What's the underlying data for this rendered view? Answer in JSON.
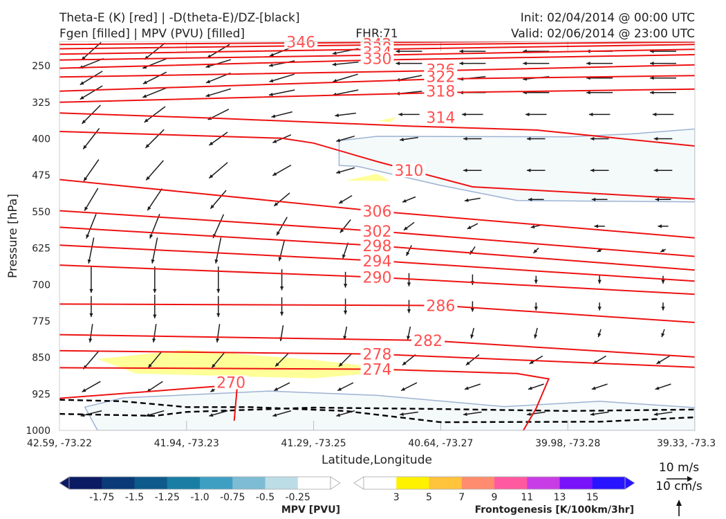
{
  "header": {
    "title_line1": "Theta-E (K) [red] | -D(theta-E)/DZ-[black]",
    "title_line2": "Fgen [filled] | MPV (PVU) [filled]",
    "fhr": "FHR:71",
    "init": "Init: 02/04/2014 @ 00:00 UTC",
    "valid": "Valid: 02/06/2014 @ 23:00 UTC"
  },
  "colors": {
    "theta_e": "#ee1111",
    "contour_label": "#ff5050",
    "neg_mpv_fill": "#f4f9fa",
    "neg_mpv_edge": "#9db2d3",
    "fgen_fill": "#ffff99",
    "dashed": "#000000"
  },
  "mpv_colorbar": {
    "title": "MPV [PVU]",
    "colors": [
      "#0b1b63",
      "#0b3a78",
      "#0e5a8c",
      "#1a7ea4",
      "#3f9fc2",
      "#7dbcd4",
      "#bcdde6",
      "#ffffff"
    ],
    "ticks": [
      "-1.75",
      "-1.5",
      "-1.25",
      "-1.0",
      "-0.75",
      "-0.5",
      "-0.25"
    ]
  },
  "fgen_colorbar": {
    "title": "Frontogenesis [K/100km/3hr]",
    "colors": [
      "#ffffff",
      "#fff200",
      "#ffc33c",
      "#ff8c6e",
      "#ff5aa0",
      "#c83ce6",
      "#7814fa",
      "#2814ff"
    ],
    "ticks": [
      "3",
      "5",
      "7",
      "9",
      "11",
      "13",
      "15"
    ]
  },
  "vector_key": {
    "label1": "10 m/s",
    "label2": "10 cm/s"
  },
  "chart_data": {
    "type": "cross-section",
    "xlabel": "Latitude,Longitude",
    "ylabel": "Pressure [hPa]",
    "x_ticks": [
      "42.59, -73.22",
      "41.94, -73.23",
      "41.29, -73.25",
      "40.64, -73.27",
      "39.98, -73.28",
      "39.33, -73.3"
    ],
    "x_range": [
      0,
      100
    ],
    "y_ticks": [
      250,
      325,
      400,
      475,
      550,
      625,
      700,
      775,
      850,
      925,
      1000
    ],
    "y_range": [
      1000,
      200
    ],
    "theta_e_contours": [
      {
        "level": 346,
        "label": "346",
        "label_at": [
          38,
          200.5
        ],
        "pts": [
          [
            0,
            206
          ],
          [
            50,
            202
          ],
          [
            100,
            197
          ]
        ]
      },
      {
        "level": 342,
        "label": "342",
        "label_at": [
          50,
          205
        ],
        "pts": [
          [
            0,
            215
          ],
          [
            50,
            207
          ],
          [
            100,
            201
          ]
        ]
      },
      {
        "level": 338,
        "label": "338",
        "label_at": [
          50,
          213
        ],
        "pts": [
          [
            0,
            226
          ],
          [
            50,
            216
          ],
          [
            100,
            206
          ]
        ]
      },
      {
        "level": 334,
        "label": "334",
        "label_at": [
          50,
          222
        ],
        "pts": [
          [
            0,
            238
          ],
          [
            50,
            228
          ],
          [
            100,
            216
          ]
        ]
      },
      {
        "level": 330,
        "label": "330",
        "label_at": [
          50,
          235
        ],
        "pts": [
          [
            0,
            255
          ],
          [
            50,
            238
          ],
          [
            100,
            227
          ]
        ]
      },
      {
        "level": 326,
        "label": "326",
        "label_at": [
          60,
          258
        ],
        "pts": [
          [
            0,
            273
          ],
          [
            60,
            260
          ],
          [
            100,
            248
          ]
        ]
      },
      {
        "level": 322,
        "label": "322",
        "label_at": [
          60,
          272
        ],
        "pts": [
          [
            0,
            302
          ],
          [
            60,
            277
          ],
          [
            100,
            270
          ]
        ]
      },
      {
        "level": 318,
        "label": "318",
        "label_at": [
          60,
          302
        ],
        "pts": [
          [
            0,
            325
          ],
          [
            60,
            305
          ],
          [
            100,
            298
          ]
        ]
      },
      {
        "level": 314,
        "label": "314",
        "label_at": [
          60,
          356
        ],
        "pts": [
          [
            0,
            347
          ],
          [
            25,
            358
          ],
          [
            55,
            374
          ],
          [
            75,
            382
          ],
          [
            100,
            415
          ]
        ]
      },
      {
        "level": 310,
        "label": "310",
        "label_at": [
          55,
          465
        ],
        "pts": [
          [
            0,
            385
          ],
          [
            35,
            399
          ],
          [
            40,
            409
          ],
          [
            50,
            447
          ],
          [
            65,
            499
          ],
          [
            100,
            524
          ]
        ]
      },
      {
        "level": 306,
        "label": "306",
        "label_at": [
          50,
          549
        ],
        "pts": [
          [
            0,
            484
          ],
          [
            50,
            549
          ],
          [
            100,
            604
          ]
        ]
      },
      {
        "level": 302,
        "label": "302",
        "label_at": [
          50,
          590
        ],
        "pts": [
          [
            0,
            548
          ],
          [
            50,
            590
          ],
          [
            100,
            642
          ]
        ]
      },
      {
        "level": 298,
        "label": "298",
        "label_at": [
          50,
          620
        ],
        "pts": [
          [
            0,
            582
          ],
          [
            50,
            620
          ],
          [
            100,
            670
          ]
        ]
      },
      {
        "level": 294,
        "label": "294",
        "label_at": [
          50,
          651
        ],
        "pts": [
          [
            0,
            619
          ],
          [
            50,
            651
          ],
          [
            100,
            693
          ]
        ]
      },
      {
        "level": 290,
        "label": "290",
        "label_at": [
          50,
          685
        ],
        "pts": [
          [
            0,
            660
          ],
          [
            50,
            685
          ],
          [
            100,
            720
          ]
        ]
      },
      {
        "level": 286,
        "label": "286",
        "label_at": [
          60,
          743
        ],
        "pts": [
          [
            0,
            740
          ],
          [
            60,
            743
          ],
          [
            100,
            778
          ]
        ]
      },
      {
        "level": 282,
        "label": "282",
        "label_at": [
          58,
          815
        ],
        "pts": [
          [
            0,
            803
          ],
          [
            58,
            815
          ],
          [
            100,
            849
          ]
        ]
      },
      {
        "level": 278,
        "label": "278",
        "label_at": [
          50,
          843
        ],
        "pts": [
          [
            0,
            836
          ],
          [
            50,
            843
          ],
          [
            100,
            870
          ]
        ]
      },
      {
        "level": 274,
        "label": "274",
        "label_at": [
          50,
          874
        ],
        "pts": [
          [
            0,
            871
          ],
          [
            50,
            874
          ],
          [
            72,
            883
          ],
          [
            77,
            894
          ],
          [
            75,
            955
          ],
          [
            73,
            1000
          ]
        ]
      },
      {
        "level": 270,
        "label": "270",
        "label_at": [
          27,
          901
        ],
        "pts": [
          [
            0,
            934
          ],
          [
            28,
            906
          ],
          [
            27.5,
            980
          ]
        ]
      }
    ],
    "neg_mpv_regions": [
      {
        "pts": [
          [
            44,
            404
          ],
          [
            50,
            395
          ],
          [
            80,
            396
          ],
          [
            90,
            390
          ],
          [
            100,
            380
          ],
          [
            100,
            530
          ],
          [
            72,
            527
          ],
          [
            60,
            496
          ],
          [
            47,
            457
          ],
          [
            44,
            455
          ]
        ]
      },
      {
        "pts": [
          [
            4,
            952
          ],
          [
            10,
            933
          ],
          [
            33,
            919
          ],
          [
            50,
            928
          ],
          [
            70,
            951
          ],
          [
            85,
            940
          ],
          [
            100,
            953
          ],
          [
            100,
            1000
          ],
          [
            6,
            1000
          ]
        ]
      }
    ],
    "fgen_regions": [
      {
        "pts": [
          [
            6,
            853
          ],
          [
            20,
            834
          ],
          [
            40,
            855
          ],
          [
            55,
            877
          ],
          [
            59,
            871
          ],
          [
            40,
            893
          ],
          [
            12,
            883
          ]
        ]
      },
      {
        "pts": [
          [
            45,
            486
          ],
          [
            50,
            472
          ],
          [
            52,
            487
          ]
        ]
      },
      {
        "pts": [
          [
            50,
            363
          ],
          [
            53,
            356
          ],
          [
            52,
            366
          ]
        ]
      }
    ],
    "dashed_contours": [
      {
        "pts": [
          [
            0,
            966
          ],
          [
            15,
            970
          ],
          [
            20,
            962
          ],
          [
            40,
            953
          ],
          [
            60,
            956
          ],
          [
            80,
            960
          ],
          [
            100,
            957
          ]
        ]
      },
      {
        "pts": [
          [
            0,
            937
          ],
          [
            10,
            940
          ],
          [
            20,
            952
          ],
          [
            30,
            952
          ],
          [
            45,
            960
          ],
          [
            60,
            983
          ],
          [
            85,
            982
          ],
          [
            100,
            973
          ]
        ]
      }
    ],
    "wind_rows": [
      {
        "p": 220,
        "u": [
          1,
          1,
          1,
          1,
          1,
          1,
          1,
          1,
          1,
          1
        ],
        "v": [
          -0.9,
          -0.8,
          -0.6,
          -0.4,
          -0.2,
          0,
          0,
          0,
          0,
          0
        ]
      },
      {
        "p": 245,
        "u": [
          1,
          1,
          1,
          1,
          1,
          1,
          1,
          1,
          1,
          1
        ],
        "v": [
          -0.4,
          -0.4,
          -0.3,
          -0.2,
          -0.1,
          0,
          0,
          0,
          0,
          0
        ]
      },
      {
        "p": 275,
        "u": [
          1,
          1,
          1,
          1,
          1,
          1,
          1,
          1,
          1,
          1
        ],
        "v": [
          -0.6,
          -0.5,
          -0.4,
          -0.3,
          -0.3,
          -0.2,
          -0.1,
          -0.1,
          0,
          0
        ]
      },
      {
        "p": 305,
        "u": [
          1,
          1,
          1,
          1,
          1,
          1,
          1,
          1,
          1,
          1
        ],
        "v": [
          -0.6,
          -0.4,
          -0.3,
          -0.2,
          -0.2,
          -0.1,
          0,
          0,
          0,
          0
        ]
      },
      {
        "p": 350,
        "u": [
          0.8,
          0.8,
          0.8,
          0.8,
          0.8,
          0.8,
          0.8,
          0.8,
          0.8,
          0.8
        ],
        "v": [
          -0.8,
          -0.6,
          -0.4,
          -0.2,
          -0.1,
          0,
          0,
          0,
          0,
          0
        ]
      },
      {
        "p": 400,
        "u": [
          0.7,
          0.7,
          0.7,
          0.7,
          0.7,
          0.7,
          0.7,
          0.7,
          0.7,
          0.7
        ],
        "v": [
          -0.9,
          -0.7,
          -0.5,
          -0.3,
          -0.2,
          -0.1,
          0,
          0,
          0,
          0
        ]
      },
      {
        "p": 465,
        "u": [
          0.7,
          0.7,
          0.7,
          0.7,
          0.7,
          0.7,
          0.7,
          0.7,
          0.7,
          0.7
        ],
        "v": [
          -1,
          -0.8,
          -0.6,
          -0.4,
          -0.2,
          -0.1,
          0,
          0,
          0,
          0
        ]
      },
      {
        "p": 525,
        "u": [
          0.6,
          0.6,
          0.6,
          0.6,
          0.5,
          0.5,
          0.6,
          0.6,
          0.6,
          0.6
        ],
        "v": [
          -1,
          -0.9,
          -0.7,
          -0.5,
          -0.3,
          -0.2,
          -0.1,
          0,
          0,
          0
        ]
      },
      {
        "p": 580,
        "u": [
          0.4,
          0.4,
          0.4,
          0.4,
          0.4,
          0.4,
          0.4,
          0.4,
          0.4,
          0.4
        ],
        "v": [
          -1,
          -1,
          -0.9,
          -0.7,
          -0.5,
          -0.3,
          -0.2,
          -0.1,
          0,
          0
        ]
      },
      {
        "p": 630,
        "u": [
          0.2,
          0.2,
          0.2,
          0.2,
          0.2,
          0.2,
          0.2,
          0.2,
          0.2,
          0.2
        ],
        "v": [
          -1,
          -1,
          -1,
          -0.8,
          -0.6,
          -0.4,
          -0.3,
          -0.2,
          -0.1,
          -0.1
        ]
      },
      {
        "p": 690,
        "u": [
          0,
          0,
          0,
          0,
          0,
          0,
          0,
          0,
          0,
          0
        ],
        "v": [
          -1,
          -1,
          -1,
          -0.8,
          -0.6,
          -0.5,
          -0.4,
          -0.3,
          -0.3,
          -0.3
        ]
      },
      {
        "p": 745,
        "u": [
          0,
          0,
          0,
          0,
          0,
          0,
          0,
          0,
          0,
          0
        ],
        "v": [
          -0.8,
          -0.9,
          -0.8,
          -0.7,
          -0.6,
          -0.5,
          -0.4,
          -0.3,
          -0.3,
          -0.3
        ]
      },
      {
        "p": 800,
        "u": [
          0.1,
          0.1,
          0.1,
          0.1,
          0.1,
          0.1,
          0.1,
          0.1,
          0.1,
          0.1
        ],
        "v": [
          -0.7,
          -0.7,
          -0.7,
          -0.6,
          -0.5,
          -0.5,
          -0.4,
          -0.4,
          -0.3,
          -0.3
        ]
      },
      {
        "p": 855,
        "u": [
          0.6,
          0.5,
          0.5,
          0.5,
          0.5,
          0.5,
          0.5,
          0.5,
          0.5,
          0.5
        ],
        "v": [
          -0.7,
          -0.6,
          -0.6,
          -0.5,
          -0.5,
          -0.4,
          -0.4,
          -0.3,
          -0.3,
          -0.3
        ]
      },
      {
        "p": 910,
        "u": [
          0.7,
          0.6,
          0.6,
          0.6,
          0.6,
          0.6,
          0.6,
          0.6,
          0.6,
          0.6
        ],
        "v": [
          -0.4,
          -0.4,
          -0.4,
          -0.3,
          -0.3,
          -0.3,
          -0.2,
          -0.2,
          -0.2,
          -0.2
        ]
      },
      {
        "p": 965,
        "u": [
          0.8,
          0.7,
          0.7,
          0.7,
          0.7,
          0.7,
          0.7,
          0.7,
          0.7,
          0.7
        ],
        "v": [
          -0.2,
          -0.2,
          -0.2,
          -0.2,
          -0.2,
          -0.1,
          -0.1,
          -0.1,
          -0.1,
          -0.1
        ]
      }
    ]
  }
}
